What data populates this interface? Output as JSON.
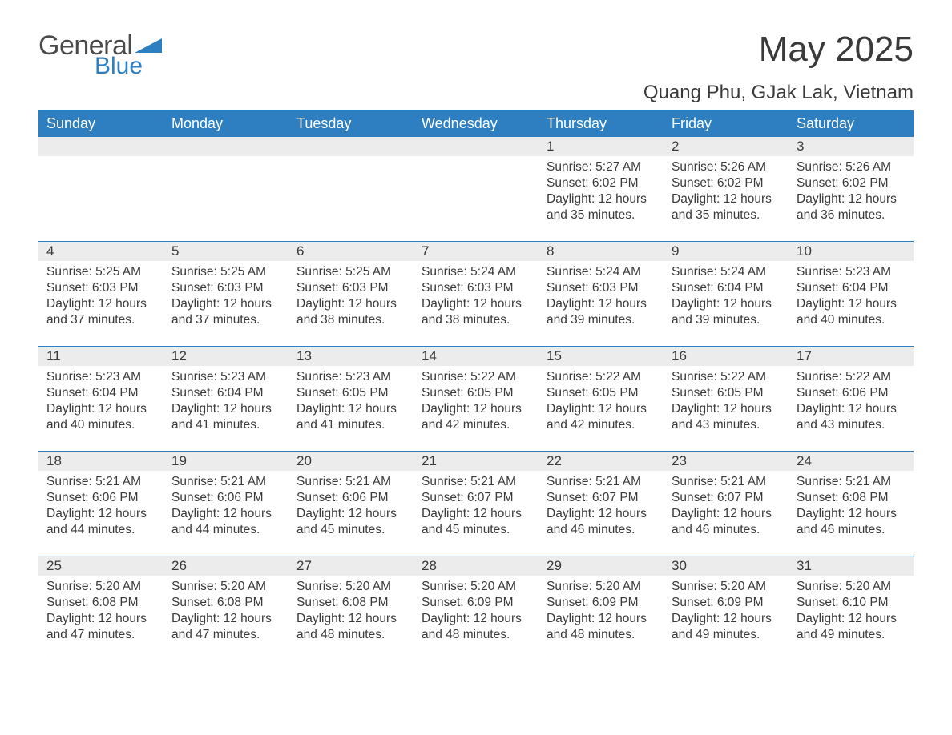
{
  "brand": {
    "text_general": "General",
    "text_blue": "Blue",
    "triangle_color": "#2d7fc1"
  },
  "header": {
    "title": "May 2025",
    "location": "Quang Phu, GJak Lak, Vietnam"
  },
  "colors": {
    "header_bg": "#2d7fc1",
    "header_text": "#ffffff",
    "daynum_bg": "#ececec",
    "rule": "#2d7fc1",
    "body_text": "#3a3a3a",
    "page_bg": "#ffffff"
  },
  "days_of_week": [
    "Sunday",
    "Monday",
    "Tuesday",
    "Wednesday",
    "Thursday",
    "Friday",
    "Saturday"
  ],
  "weeks": [
    [
      {
        "n": "",
        "sunrise": "",
        "sunset": "",
        "daylight": ""
      },
      {
        "n": "",
        "sunrise": "",
        "sunset": "",
        "daylight": ""
      },
      {
        "n": "",
        "sunrise": "",
        "sunset": "",
        "daylight": ""
      },
      {
        "n": "",
        "sunrise": "",
        "sunset": "",
        "daylight": ""
      },
      {
        "n": "1",
        "sunrise": "Sunrise: 5:27 AM",
        "sunset": "Sunset: 6:02 PM",
        "daylight": "Daylight: 12 hours and 35 minutes."
      },
      {
        "n": "2",
        "sunrise": "Sunrise: 5:26 AM",
        "sunset": "Sunset: 6:02 PM",
        "daylight": "Daylight: 12 hours and 35 minutes."
      },
      {
        "n": "3",
        "sunrise": "Sunrise: 5:26 AM",
        "sunset": "Sunset: 6:02 PM",
        "daylight": "Daylight: 12 hours and 36 minutes."
      }
    ],
    [
      {
        "n": "4",
        "sunrise": "Sunrise: 5:25 AM",
        "sunset": "Sunset: 6:03 PM",
        "daylight": "Daylight: 12 hours and 37 minutes."
      },
      {
        "n": "5",
        "sunrise": "Sunrise: 5:25 AM",
        "sunset": "Sunset: 6:03 PM",
        "daylight": "Daylight: 12 hours and 37 minutes."
      },
      {
        "n": "6",
        "sunrise": "Sunrise: 5:25 AM",
        "sunset": "Sunset: 6:03 PM",
        "daylight": "Daylight: 12 hours and 38 minutes."
      },
      {
        "n": "7",
        "sunrise": "Sunrise: 5:24 AM",
        "sunset": "Sunset: 6:03 PM",
        "daylight": "Daylight: 12 hours and 38 minutes."
      },
      {
        "n": "8",
        "sunrise": "Sunrise: 5:24 AM",
        "sunset": "Sunset: 6:03 PM",
        "daylight": "Daylight: 12 hours and 39 minutes."
      },
      {
        "n": "9",
        "sunrise": "Sunrise: 5:24 AM",
        "sunset": "Sunset: 6:04 PM",
        "daylight": "Daylight: 12 hours and 39 minutes."
      },
      {
        "n": "10",
        "sunrise": "Sunrise: 5:23 AM",
        "sunset": "Sunset: 6:04 PM",
        "daylight": "Daylight: 12 hours and 40 minutes."
      }
    ],
    [
      {
        "n": "11",
        "sunrise": "Sunrise: 5:23 AM",
        "sunset": "Sunset: 6:04 PM",
        "daylight": "Daylight: 12 hours and 40 minutes."
      },
      {
        "n": "12",
        "sunrise": "Sunrise: 5:23 AM",
        "sunset": "Sunset: 6:04 PM",
        "daylight": "Daylight: 12 hours and 41 minutes."
      },
      {
        "n": "13",
        "sunrise": "Sunrise: 5:23 AM",
        "sunset": "Sunset: 6:05 PM",
        "daylight": "Daylight: 12 hours and 41 minutes."
      },
      {
        "n": "14",
        "sunrise": "Sunrise: 5:22 AM",
        "sunset": "Sunset: 6:05 PM",
        "daylight": "Daylight: 12 hours and 42 minutes."
      },
      {
        "n": "15",
        "sunrise": "Sunrise: 5:22 AM",
        "sunset": "Sunset: 6:05 PM",
        "daylight": "Daylight: 12 hours and 42 minutes."
      },
      {
        "n": "16",
        "sunrise": "Sunrise: 5:22 AM",
        "sunset": "Sunset: 6:05 PM",
        "daylight": "Daylight: 12 hours and 43 minutes."
      },
      {
        "n": "17",
        "sunrise": "Sunrise: 5:22 AM",
        "sunset": "Sunset: 6:06 PM",
        "daylight": "Daylight: 12 hours and 43 minutes."
      }
    ],
    [
      {
        "n": "18",
        "sunrise": "Sunrise: 5:21 AM",
        "sunset": "Sunset: 6:06 PM",
        "daylight": "Daylight: 12 hours and 44 minutes."
      },
      {
        "n": "19",
        "sunrise": "Sunrise: 5:21 AM",
        "sunset": "Sunset: 6:06 PM",
        "daylight": "Daylight: 12 hours and 44 minutes."
      },
      {
        "n": "20",
        "sunrise": "Sunrise: 5:21 AM",
        "sunset": "Sunset: 6:06 PM",
        "daylight": "Daylight: 12 hours and 45 minutes."
      },
      {
        "n": "21",
        "sunrise": "Sunrise: 5:21 AM",
        "sunset": "Sunset: 6:07 PM",
        "daylight": "Daylight: 12 hours and 45 minutes."
      },
      {
        "n": "22",
        "sunrise": "Sunrise: 5:21 AM",
        "sunset": "Sunset: 6:07 PM",
        "daylight": "Daylight: 12 hours and 46 minutes."
      },
      {
        "n": "23",
        "sunrise": "Sunrise: 5:21 AM",
        "sunset": "Sunset: 6:07 PM",
        "daylight": "Daylight: 12 hours and 46 minutes."
      },
      {
        "n": "24",
        "sunrise": "Sunrise: 5:21 AM",
        "sunset": "Sunset: 6:08 PM",
        "daylight": "Daylight: 12 hours and 46 minutes."
      }
    ],
    [
      {
        "n": "25",
        "sunrise": "Sunrise: 5:20 AM",
        "sunset": "Sunset: 6:08 PM",
        "daylight": "Daylight: 12 hours and 47 minutes."
      },
      {
        "n": "26",
        "sunrise": "Sunrise: 5:20 AM",
        "sunset": "Sunset: 6:08 PM",
        "daylight": "Daylight: 12 hours and 47 minutes."
      },
      {
        "n": "27",
        "sunrise": "Sunrise: 5:20 AM",
        "sunset": "Sunset: 6:08 PM",
        "daylight": "Daylight: 12 hours and 48 minutes."
      },
      {
        "n": "28",
        "sunrise": "Sunrise: 5:20 AM",
        "sunset": "Sunset: 6:09 PM",
        "daylight": "Daylight: 12 hours and 48 minutes."
      },
      {
        "n": "29",
        "sunrise": "Sunrise: 5:20 AM",
        "sunset": "Sunset: 6:09 PM",
        "daylight": "Daylight: 12 hours and 48 minutes."
      },
      {
        "n": "30",
        "sunrise": "Sunrise: 5:20 AM",
        "sunset": "Sunset: 6:09 PM",
        "daylight": "Daylight: 12 hours and 49 minutes."
      },
      {
        "n": "31",
        "sunrise": "Sunrise: 5:20 AM",
        "sunset": "Sunset: 6:10 PM",
        "daylight": "Daylight: 12 hours and 49 minutes."
      }
    ]
  ]
}
